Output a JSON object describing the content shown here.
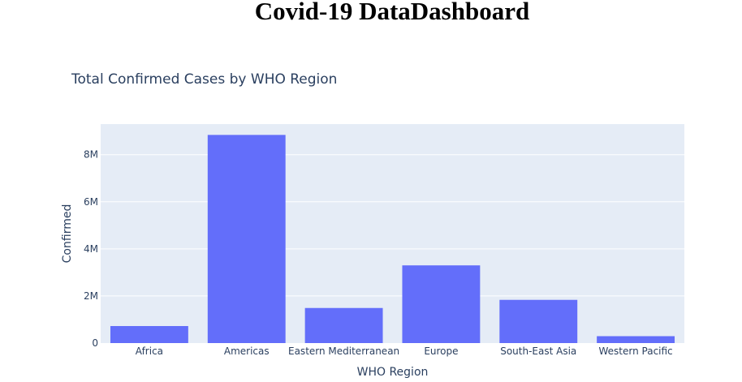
{
  "page": {
    "title": "Covid-19 DataDashboard"
  },
  "chart_data": {
    "type": "bar",
    "title": "Total Confirmed Cases by WHO Region",
    "xlabel": "WHO Region",
    "ylabel": "Confirmed",
    "categories": [
      "Africa",
      "Americas",
      "Eastern Mediterranean",
      "Europe",
      "South-East Asia",
      "Western Pacific"
    ],
    "values": [
      723000,
      8840000,
      1490000,
      3300000,
      1835000,
      293000
    ],
    "ylim": [
      0,
      9300000
    ],
    "yticks": [
      0,
      2000000,
      4000000,
      6000000,
      8000000
    ],
    "ytick_labels": [
      "0",
      "2M",
      "4M",
      "6M",
      "8M"
    ],
    "grid": true,
    "colors": {
      "bar": "#636efa",
      "plot_bg": "#e5ecf6",
      "grid": "#ffffff",
      "text": "#2a3f5f"
    }
  }
}
